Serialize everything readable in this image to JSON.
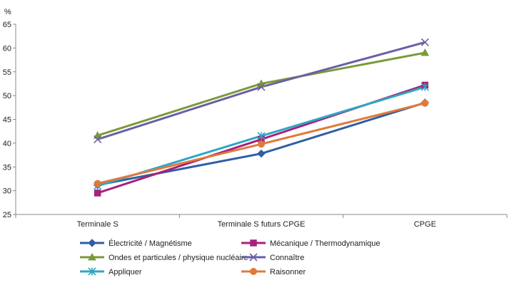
{
  "chart_data": {
    "type": "line",
    "ylabel": "%",
    "ylim": [
      25,
      65
    ],
    "yticks": [
      25,
      30,
      35,
      40,
      45,
      50,
      55,
      60,
      65
    ],
    "categories": [
      "Terminale S",
      "Terminale S futurs CPGE",
      "CPGE"
    ],
    "grid": false,
    "legend_position": "bottom",
    "series": [
      {
        "name": "Électricité / Magnétisme",
        "color": "#2e5fa3",
        "marker": "diamond",
        "values": [
          31.2,
          37.8,
          48.5
        ]
      },
      {
        "name": "Mécanique / Thermodynamique",
        "color": "#a6227a",
        "marker": "square",
        "values": [
          29.5,
          40.8,
          52.2
        ]
      },
      {
        "name": "Ondes et particules / physique nucléaire",
        "color": "#7a9a3a",
        "marker": "triangle",
        "values": [
          41.6,
          52.5,
          59.0
        ]
      },
      {
        "name": "Connaître",
        "color": "#6a5fa6",
        "marker": "x",
        "values": [
          40.8,
          51.8,
          61.2
        ]
      },
      {
        "name": "Appliquer",
        "color": "#2fa6c4",
        "marker": "star",
        "values": [
          31.0,
          41.5,
          51.8
        ]
      },
      {
        "name": "Raisonner",
        "color": "#e07a3a",
        "marker": "circle",
        "values": [
          31.5,
          39.8,
          48.4
        ]
      }
    ]
  }
}
